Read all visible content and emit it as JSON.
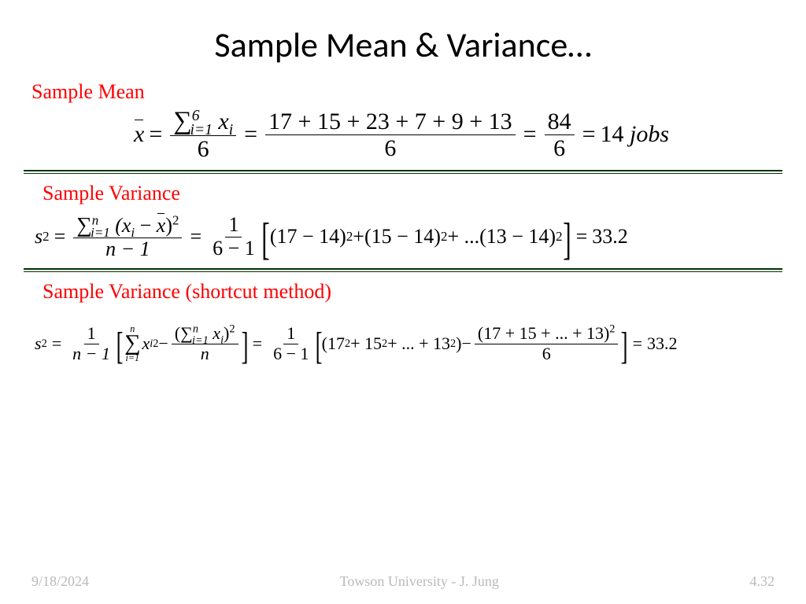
{
  "title": "Sample Mean & Variance…",
  "labels": {
    "mean": "Sample Mean",
    "variance": "Sample Variance",
    "shortcut": "Sample Variance (shortcut method)"
  },
  "mean": {
    "lhs_var": "x",
    "sum_upper": "6",
    "sum_lower": "i=1",
    "sum_body": "x",
    "sum_body_sub": "i",
    "denom": "6",
    "expanded_num": "17 + 15 + 23 + 7 + 9 + 13",
    "expanded_den": "6",
    "reduced_num": "84",
    "reduced_den": "6",
    "result": "14",
    "unit": "jobs"
  },
  "variance": {
    "lhs": "s",
    "lhs_sup": "2",
    "sum_upper": "n",
    "sum_lower": "i=1",
    "body": "(x",
    "body_sub": "i",
    "body_mid": " − ",
    "body_xbar": "x",
    "body_close": ")",
    "body_sup": "2",
    "denom": "n − 1",
    "coef_num": "1",
    "coef_den": "6 − 1",
    "terms": "(17 − 14)",
    "terms_sup": "2",
    "plus": " + ",
    "term2": "(15 − 14)",
    "ellipsis": " + ... ",
    "termN": "(13 − 14)",
    "result": "33.2"
  },
  "shortcut": {
    "lhs": "s",
    "lhs_sup": "2",
    "coef_num": "1",
    "coef_den": "n − 1",
    "sum1_upper": "n",
    "sum1_lower": "i=1",
    "sum1_body": "x",
    "sum1_sub": "i",
    "sum1_sup": "2",
    "minus": " − ",
    "sum2_num_open": "(",
    "sum2_upper": "n",
    "sum2_lower": "i=1",
    "sum2_body": "x",
    "sum2_sub": "i",
    "sum2_close": ")",
    "sum2_sup": "2",
    "sum2_den": "n",
    "coef2_num": "1",
    "coef2_den": "6 − 1",
    "sq_terms": "(17",
    "sq_sup": "2",
    "sq_plus": " + 15",
    "sq_ell": " + ... + 13",
    "sq_close": ")",
    "minus2": " − ",
    "big_num": "(17 + 15 + ... + 13)",
    "big_sup": "2",
    "big_den": "6",
    "result": "33.2"
  },
  "footer": {
    "date": "9/18/2024",
    "center": "Towson University - J. Jung",
    "page": "4.32"
  },
  "colors": {
    "label": "#ff0000",
    "divider": "#003300",
    "footer": "#b9b9b9"
  }
}
